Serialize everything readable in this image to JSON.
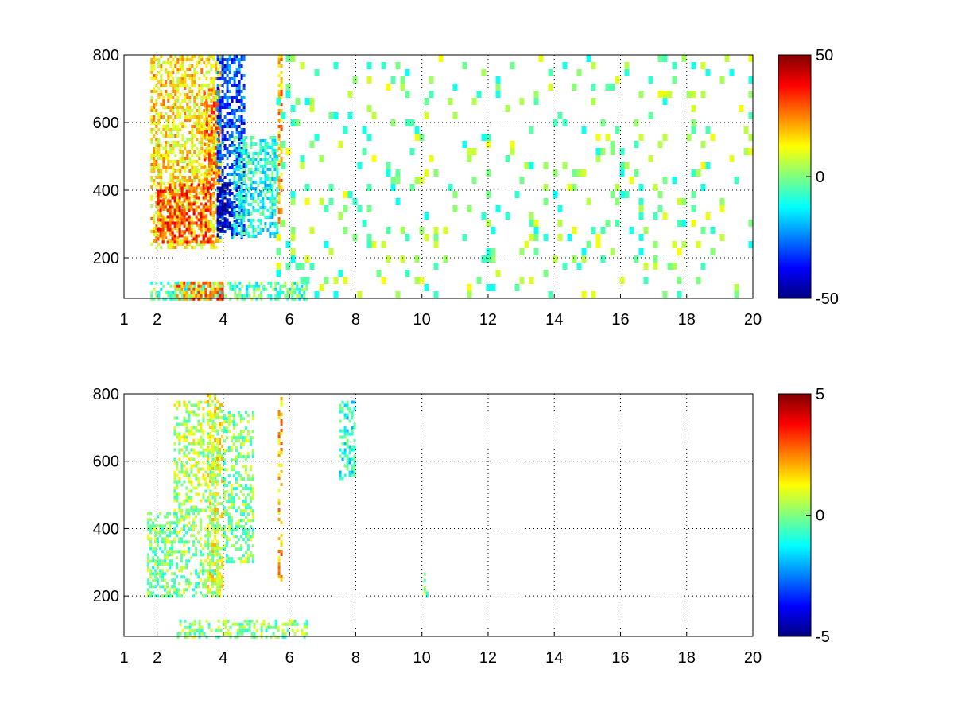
{
  "chart_data": [
    {
      "type": "heatmap",
      "panel": "top",
      "title": "",
      "xlabel": "",
      "ylabel": "",
      "xlim": [
        1,
        20
      ],
      "ylim": [
        80,
        800
      ],
      "xticks": [
        1,
        2,
        4,
        6,
        8,
        10,
        12,
        14,
        16,
        18,
        20
      ],
      "yticks": [
        200,
        400,
        600,
        800
      ],
      "grid": true,
      "grid_style": "dotted",
      "colormap": "jet",
      "clim": [
        -50,
        50
      ],
      "colorbar": {
        "placement": "right",
        "ticks": [
          -50,
          0,
          50
        ]
      },
      "regions": [
        {
          "x": [
            1.8,
            3.9
          ],
          "y": [
            230,
            800
          ],
          "value": 15
        },
        {
          "x": [
            2.0,
            3.7
          ],
          "y": [
            250,
            420
          ],
          "value": 30
        },
        {
          "x": [
            3.4,
            3.9
          ],
          "y": [
            420,
            700
          ],
          "value": 25
        },
        {
          "x": [
            3.8,
            4.6
          ],
          "y": [
            260,
            800
          ],
          "value": -30
        },
        {
          "x": [
            3.8,
            4.2
          ],
          "y": [
            260,
            420
          ],
          "value": -45
        },
        {
          "x": [
            4.3,
            5.6
          ],
          "y": [
            260,
            560
          ],
          "value": -10
        },
        {
          "x": [
            1.8,
            6.5
          ],
          "y": [
            80,
            130
          ],
          "value": -5
        },
        {
          "x": [
            2.5,
            4.0
          ],
          "y": [
            80,
            130
          ],
          "value": 25
        },
        {
          "x": [
            5.65,
            5.75
          ],
          "y": [
            300,
            800
          ],
          "value": 20
        },
        {
          "x": [
            5.6,
            20
          ],
          "y": [
            80,
            800
          ],
          "value": 0,
          "sparse": true
        }
      ]
    },
    {
      "type": "heatmap",
      "panel": "bottom",
      "title": "",
      "xlabel": "",
      "ylabel": "",
      "xlim": [
        1,
        20
      ],
      "ylim": [
        80,
        800
      ],
      "xticks": [
        1,
        2,
        4,
        6,
        8,
        10,
        12,
        14,
        16,
        18,
        20
      ],
      "yticks": [
        200,
        400,
        600,
        800
      ],
      "grid": true,
      "grid_style": "dotted",
      "colormap": "jet",
      "clim": [
        -5,
        5
      ],
      "colorbar": {
        "placement": "right",
        "ticks": [
          -5,
          0,
          5
        ]
      },
      "regions": [
        {
          "x": [
            1.7,
            3.9
          ],
          "y": [
            200,
            450
          ],
          "value": 0
        },
        {
          "x": [
            2.5,
            3.8
          ],
          "y": [
            450,
            780
          ],
          "value": 0.5
        },
        {
          "x": [
            3.5,
            4.0
          ],
          "y": [
            200,
            800
          ],
          "value": 1
        },
        {
          "x": [
            4.0,
            4.9
          ],
          "y": [
            300,
            750
          ],
          "value": 0
        },
        {
          "x": [
            2.6,
            6.5
          ],
          "y": [
            80,
            130
          ],
          "value": 0
        },
        {
          "x": [
            5.65,
            5.75
          ],
          "y": [
            250,
            800
          ],
          "value": 2
        },
        {
          "x": [
            7.5,
            8.0
          ],
          "y": [
            550,
            780
          ],
          "value": -1
        },
        {
          "x": [
            10.05,
            10.15
          ],
          "y": [
            200,
            270
          ],
          "value": 0
        }
      ]
    }
  ]
}
